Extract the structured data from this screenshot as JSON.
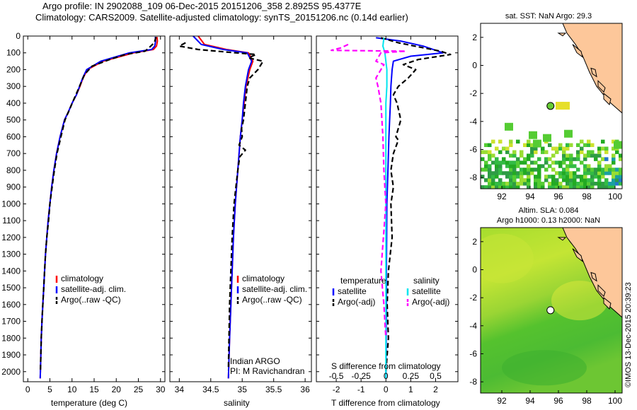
{
  "header": {
    "line1": "Argo profile: IN 2902088_109 06-Dec-2015 20151206_358 2.8925S 95.4377E",
    "line2": "Climatology: CARS2009. Satellite-adjusted climatology: synTS_20151206.nc (0.14d earlier)"
  },
  "colors": {
    "climatology": "#ff0000",
    "satellite": "#0000ff",
    "argo": "#000000",
    "salinity_satellite": "#00e5ee",
    "salinity_argo": "#ff00ff",
    "land": "#fdc79a",
    "map_background": "#ffffff"
  },
  "chart_data": [
    {
      "type": "line",
      "panel": "temperature",
      "xlabel": "temperature (deg C)",
      "ylabel": "",
      "xlim": [
        -1,
        31
      ],
      "ylim": [
        2060,
        0
      ],
      "xticks": [
        0,
        5,
        10,
        15,
        20,
        25,
        30
      ],
      "yticks": [
        0,
        100,
        200,
        300,
        400,
        500,
        600,
        700,
        800,
        900,
        1000,
        1100,
        1200,
        1300,
        1400,
        1500,
        1600,
        1700,
        1800,
        1900,
        2000
      ],
      "legend": [
        "climatology",
        "satellite-adj. clim.",
        "Argo(..raw -QC)"
      ],
      "legend_position": "lower-center",
      "series": [
        {
          "name": "climatology",
          "color": "#ff0000",
          "dash": "solid",
          "x": [
            29.2,
            29.3,
            29.1,
            28.4,
            24.0,
            17.0,
            13.5,
            12.5,
            11.8,
            11.0,
            10.0,
            9.2,
            8.3,
            7.3,
            6.5,
            5.9,
            5.4,
            5.0,
            4.6,
            4.3,
            4.0,
            3.8,
            3.6,
            3.4,
            3.2,
            3.05,
            2.95,
            2.85,
            2.8
          ],
          "y": [
            5,
            30,
            60,
            80,
            100,
            150,
            200,
            250,
            300,
            350,
            400,
            450,
            500,
            600,
            700,
            800,
            900,
            1000,
            1100,
            1200,
            1300,
            1400,
            1500,
            1600,
            1700,
            1800,
            1900,
            2000,
            2040
          ]
        },
        {
          "name": "satellite-adj. clim.",
          "color": "#0000ff",
          "dash": "solid",
          "x": [
            28.8,
            28.9,
            28.7,
            28.0,
            23.0,
            16.5,
            13.3,
            12.4,
            11.7,
            11.0,
            10.0,
            9.2,
            8.3,
            7.3,
            6.5,
            5.9,
            5.4,
            5.0,
            4.6,
            4.3,
            4.0,
            3.8,
            3.6,
            3.4,
            3.2,
            3.05,
            2.95,
            2.85,
            2.8
          ],
          "y": [
            5,
            30,
            60,
            80,
            100,
            150,
            200,
            250,
            300,
            350,
            400,
            450,
            500,
            600,
            700,
            800,
            900,
            1000,
            1100,
            1200,
            1300,
            1400,
            1500,
            1600,
            1700,
            1800,
            1900,
            2000,
            2040
          ]
        },
        {
          "name": "Argo(..raw -QC)",
          "color": "#000000",
          "dash": "dashed",
          "x": [
            29.0,
            28.6,
            27.4,
            26.5,
            22.0,
            18.5,
            14.5,
            12.8,
            12.0,
            11.2,
            10.2,
            9.4,
            8.4,
            7.5,
            6.6,
            6.0,
            5.5,
            5.0,
            4.7,
            4.3,
            4.0,
            3.8,
            3.6,
            3.4,
            3.2,
            3.05,
            2.95,
            2.85
          ],
          "y": [
            5,
            40,
            70,
            90,
            110,
            140,
            180,
            230,
            280,
            330,
            390,
            440,
            500,
            600,
            700,
            800,
            900,
            1000,
            1100,
            1200,
            1300,
            1400,
            1500,
            1600,
            1700,
            1800,
            1900,
            2000
          ]
        }
      ]
    },
    {
      "type": "line",
      "panel": "salinity",
      "xlabel": "salinity",
      "ylabel": "",
      "xlim": [
        33.85,
        36.1
      ],
      "ylim": [
        2060,
        0
      ],
      "xticks": [
        34,
        34.5,
        35,
        35.5,
        36
      ],
      "xticklabels": [
        "34",
        "34.5",
        "35",
        "35.5",
        "36"
      ],
      "legend": [
        "climatology",
        "satellite-adj. clim.",
        "Argo(..raw -QC)"
      ],
      "legend_position": "lower-right",
      "annotations": [
        "Indian ARGO",
        "PI: M Ravichandran"
      ],
      "series": [
        {
          "name": "climatology",
          "color": "#ff0000",
          "dash": "solid",
          "x": [
            34.3,
            34.4,
            34.75,
            35.1,
            35.17,
            35.12,
            35.06,
            35.03,
            35.0,
            34.97,
            34.95,
            34.93,
            34.91,
            34.89,
            34.86,
            34.84,
            34.82,
            34.8,
            34.78
          ],
          "y": [
            0,
            50,
            80,
            100,
            150,
            200,
            300,
            400,
            500,
            600,
            700,
            800,
            900,
            1000,
            1200,
            1400,
            1600,
            1800,
            2040
          ]
        },
        {
          "name": "satellite-adj. clim.",
          "color": "#0000ff",
          "dash": "solid",
          "x": [
            34.22,
            34.35,
            34.7,
            35.08,
            35.15,
            35.1,
            35.05,
            35.02,
            35.0,
            34.97,
            34.95,
            34.93,
            34.91,
            34.89,
            34.86,
            34.84,
            34.82,
            34.8,
            34.78
          ],
          "y": [
            0,
            50,
            80,
            100,
            150,
            200,
            300,
            400,
            500,
            600,
            700,
            800,
            900,
            1000,
            1200,
            1400,
            1600,
            1800,
            2040
          ]
        },
        {
          "name": "Argo(..raw -QC)",
          "color": "#000000",
          "dash": "dashed",
          "x": [
            34.1,
            34.0,
            34.3,
            34.75,
            35.22,
            35.1,
            35.33,
            35.25,
            35.12,
            35.08,
            35.05,
            35.02,
            34.99,
            35.0,
            34.95,
            35.05,
            34.96,
            34.93,
            34.9,
            34.87,
            34.84,
            34.82,
            34.8,
            34.78
          ],
          "y": [
            40,
            60,
            80,
            95,
            110,
            130,
            150,
            200,
            250,
            300,
            400,
            500,
            550,
            600,
            650,
            680,
            720,
            800,
            900,
            1000,
            1200,
            1400,
            1600,
            1990
          ]
        }
      ]
    },
    {
      "type": "line",
      "panel": "differences",
      "xlabel": "T difference from climatology",
      "xlabel_top": "S difference from climatology",
      "ylabel": "",
      "xlim": [
        -2.8,
        2.9
      ],
      "ylim": [
        2060,
        0
      ],
      "xticks": [
        -2,
        -1,
        0,
        1,
        2
      ],
      "xticks_top": [
        -0.5,
        -0.25,
        0,
        0.25,
        0.5
      ],
      "xticklabels_top": [
        "-0.5",
        "-0.25",
        "0",
        "0.25",
        "0.5"
      ],
      "legend_groups": [
        {
          "heading": "temperature",
          "entries": [
            "satellite",
            "Argo(-adj)"
          ]
        },
        {
          "heading": "salinity",
          "entries": [
            "satellite",
            "Argo(-adj)"
          ]
        }
      ],
      "legend_position": "lower-center",
      "series": [
        {
          "name": "satellite",
          "group": "temperature",
          "units": "deg C",
          "color": "#0000ff",
          "dash": "solid",
          "x": [
            -0.4,
            0.6,
            1.5,
            2.3,
            1.0,
            0.3,
            0.25,
            0.2,
            0.18,
            0.15,
            0.12,
            0.1,
            0.08,
            0.06,
            0.04,
            0.03,
            0.02,
            0.02,
            0.01,
            0.01,
            0.0
          ],
          "y": [
            10,
            30,
            60,
            100,
            120,
            150,
            200,
            300,
            400,
            500,
            600,
            700,
            800,
            900,
            1000,
            1200,
            1400,
            1600,
            1800,
            1900,
            2040
          ]
        },
        {
          "name": "Argo(-adj)",
          "group": "temperature",
          "units": "deg C",
          "color": "#000000",
          "dash": "dashed",
          "x": [
            -0.2,
            0.5,
            1.5,
            2.2,
            2.6,
            1.3,
            0.7,
            1.2,
            0.9,
            0.5,
            0.3,
            0.45,
            0.6,
            0.4,
            0.5,
            0.3,
            0.2,
            0.3,
            0.2,
            0.25,
            0.1,
            0.05,
            0.1,
            0.0
          ],
          "y": [
            10,
            40,
            70,
            90,
            110,
            140,
            170,
            200,
            250,
            300,
            350,
            400,
            500,
            600,
            620,
            700,
            800,
            900,
            1000,
            1200,
            1400,
            1600,
            1800,
            2000
          ]
        },
        {
          "name": "satellite",
          "group": "salinity",
          "units": "psu",
          "color": "#00e5ee",
          "dash": "solid",
          "x": [
            -0.02,
            -0.03,
            -0.01,
            0.0,
            0.01,
            0.01,
            0.0,
            0.0,
            0.0,
            0.0,
            0.0,
            0.0,
            0.0,
            0.0,
            0.0
          ],
          "y": [
            10,
            60,
            100,
            150,
            200,
            300,
            400,
            600,
            800,
            1000,
            1200,
            1400,
            1600,
            1800,
            2040
          ]
        },
        {
          "name": "Argo(-adj)",
          "group": "salinity",
          "units": "psu",
          "color": "#ff00ff",
          "dash": "dashed",
          "x": [
            -0.38,
            -0.45,
            -0.55,
            0.2,
            -0.05,
            -0.1,
            -0.02,
            -0.1,
            -0.08,
            -0.05,
            -0.04,
            -0.03,
            -0.02,
            0.0,
            -0.05,
            -0.02,
            0.0
          ],
          "y": [
            50,
            70,
            85,
            90,
            100,
            150,
            170,
            250,
            300,
            400,
            500,
            600,
            800,
            1000,
            1400,
            1600,
            1800
          ]
        }
      ]
    },
    {
      "type": "heatmap",
      "panel": "sst-map",
      "title": "sat. SST: NaN Argo: 29.3",
      "xlim": [
        90.5,
        100.5
      ],
      "ylim": [
        -8.8,
        3.0
      ],
      "xticks": [
        92,
        94,
        96,
        98,
        100
      ],
      "yticks": [
        -8,
        -6,
        -4,
        -2,
        0,
        2
      ],
      "marker": {
        "lon": 95.4377,
        "lat": -2.8925,
        "fill": "#66cc33"
      }
    },
    {
      "type": "heatmap",
      "panel": "sla-map",
      "title": "Altim. SLA: 0.084",
      "subtitle": "Argo h1000: 0.13 h2000: NaN",
      "xlim": [
        90.5,
        100.5
      ],
      "ylim": [
        -8.8,
        3.0
      ],
      "xticks": [
        92,
        94,
        96,
        98,
        100
      ],
      "yticks": [
        -8,
        -6,
        -4,
        -2,
        0,
        2
      ],
      "marker": {
        "lon": 95.4377,
        "lat": -2.8925,
        "fill": "#ffffff"
      }
    }
  ],
  "side_label": "©IMOS 13-Dec-2015 20:39:23"
}
